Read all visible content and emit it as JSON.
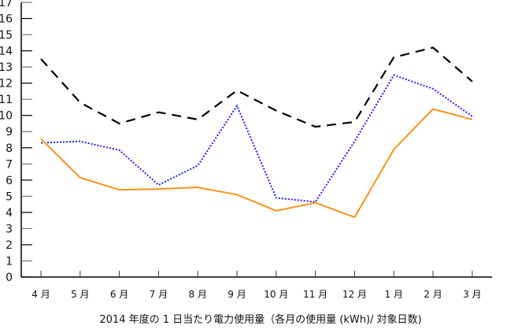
{
  "chart_data": {
    "type": "line",
    "title": "",
    "xlabel": "2014 年度の 1 日当たり電力使用量（各月の使用量 (kWh)/ 対象日数)",
    "ylabel": "",
    "ylim": [
      0,
      17
    ],
    "yticks": [
      0,
      1,
      2,
      3,
      4,
      5,
      6,
      7,
      8,
      9,
      10,
      11,
      12,
      13,
      14,
      15,
      16,
      17
    ],
    "grid": false,
    "legend": null,
    "categories": [
      "4 月",
      "5 月",
      "6 月",
      "7 月",
      "8 月",
      "9 月",
      "10 月",
      "11 月",
      "12 月",
      "1 月",
      "2 月",
      "3 月"
    ],
    "series": [
      {
        "name": "black-dashed",
        "color": "#000000",
        "style": "dashed",
        "values": [
          13.5,
          10.8,
          9.5,
          10.2,
          9.75,
          11.55,
          10.3,
          9.3,
          9.6,
          13.6,
          14.2,
          12.1
        ]
      },
      {
        "name": "blue-dotted",
        "color": "#2222ee",
        "style": "dotted",
        "values": [
          8.3,
          8.4,
          7.85,
          5.7,
          6.9,
          10.6,
          4.9,
          4.65,
          8.4,
          12.5,
          11.65,
          9.95
        ]
      },
      {
        "name": "orange-solid",
        "color": "#f7931e",
        "style": "solid",
        "values": [
          8.55,
          6.15,
          5.4,
          5.45,
          5.55,
          5.1,
          4.1,
          4.6,
          3.7,
          7.9,
          10.4,
          9.75
        ]
      }
    ]
  }
}
